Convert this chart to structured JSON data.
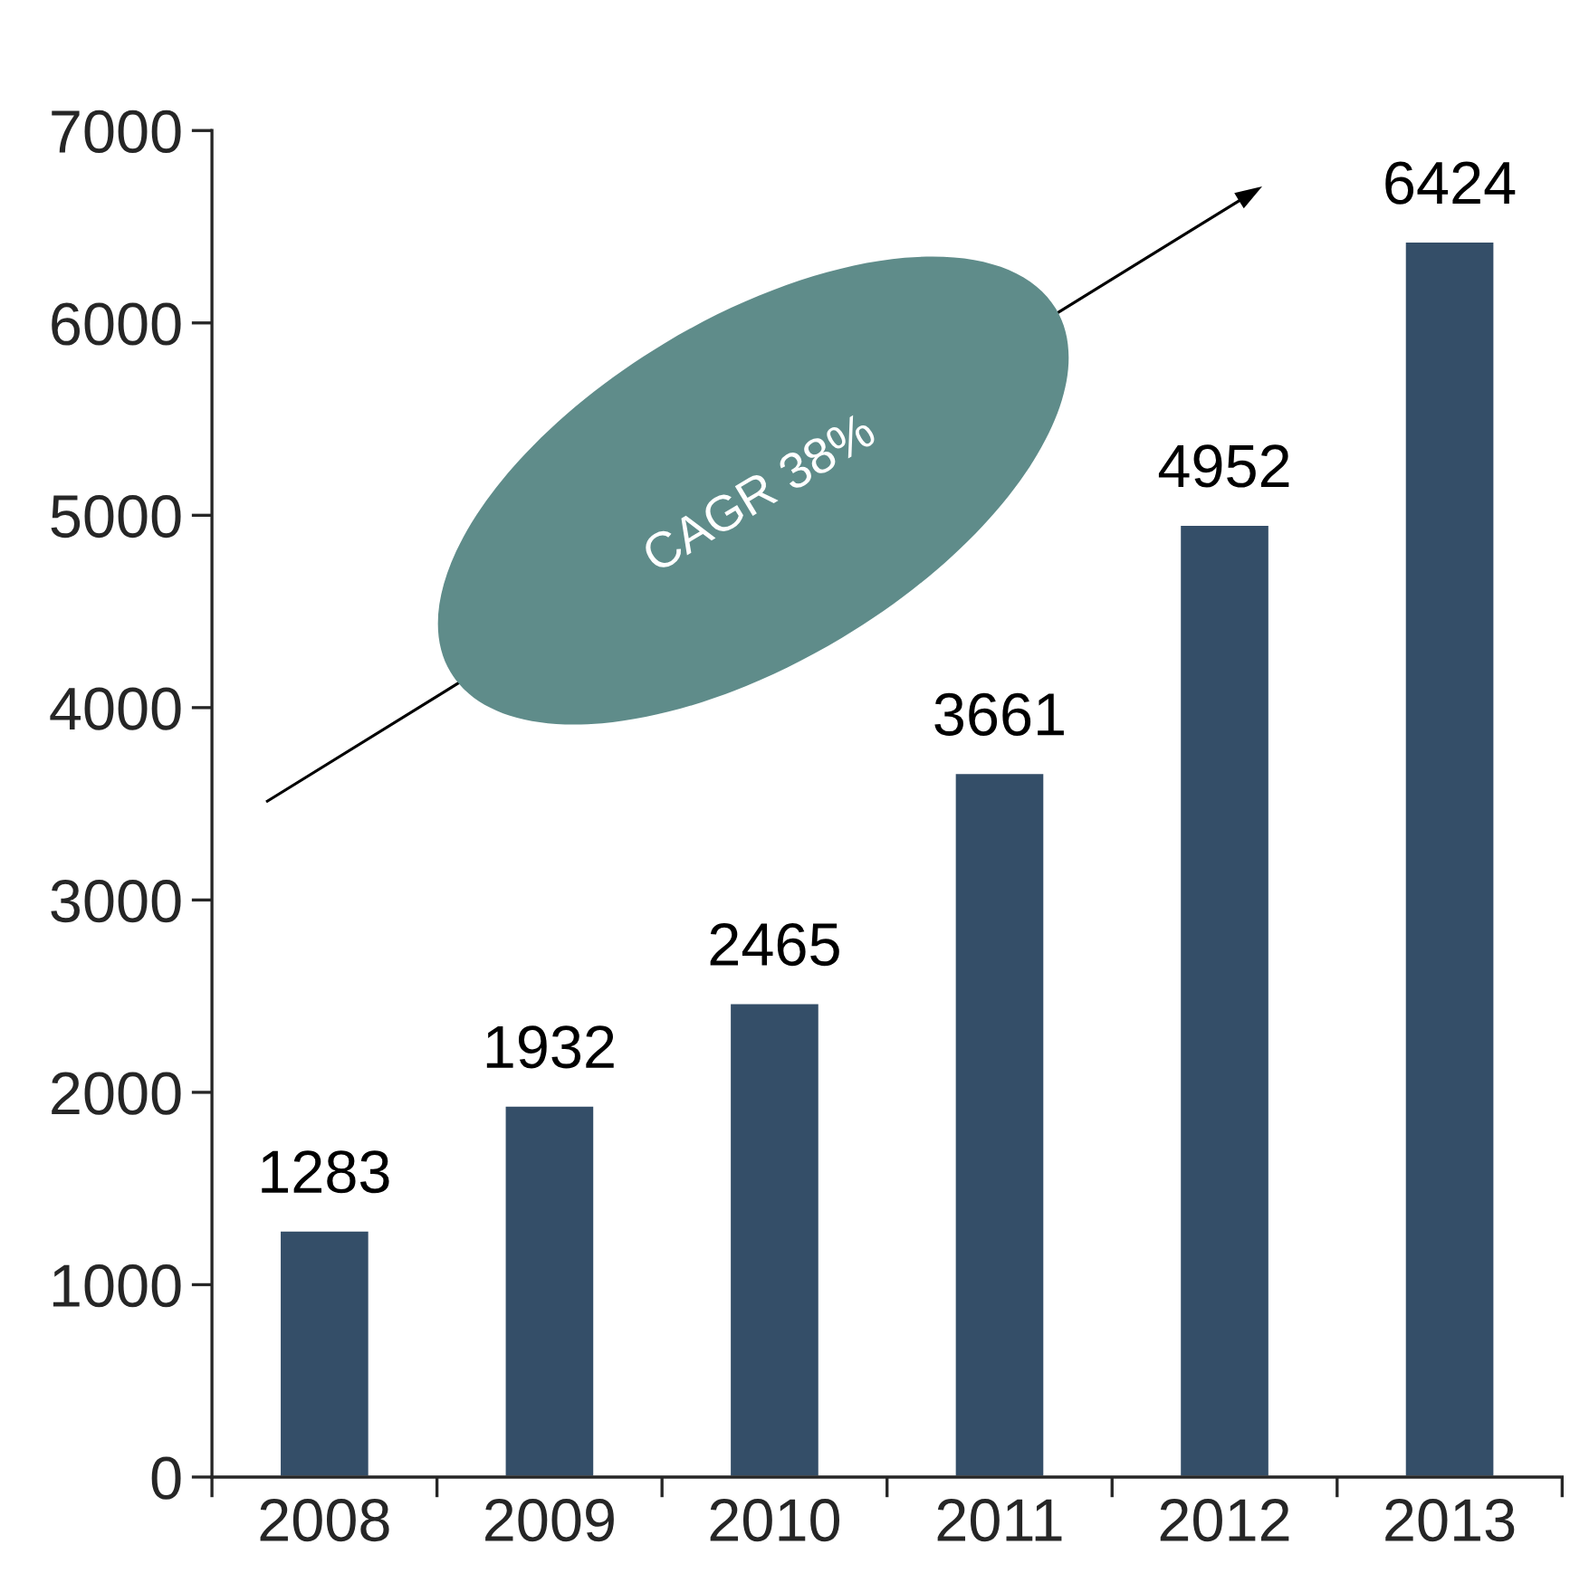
{
  "chart_data": {
    "type": "bar",
    "categories": [
      "2008",
      "2009",
      "2010",
      "2011",
      "2012",
      "2013"
    ],
    "values": [
      1283,
      1932,
      2465,
      3661,
      4952,
      6424
    ],
    "color": "#344e68",
    "ylim": [
      0,
      7000
    ],
    "yticks": [
      0,
      1000,
      2000,
      3000,
      4000,
      5000,
      6000,
      7000
    ],
    "data_labels": true,
    "grid": false,
    "legend": false,
    "annotations": [
      "CAGR 38%"
    ]
  }
}
